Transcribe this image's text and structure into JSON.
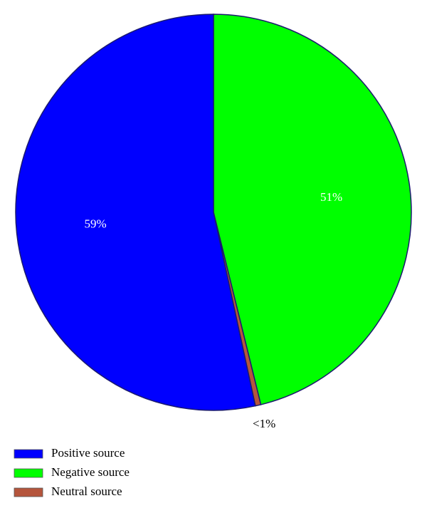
{
  "chart_data": {
    "type": "pie",
    "categories": [
      "Positive source",
      "Negative source",
      "Neutral source"
    ],
    "values": [
      59,
      51,
      0.5
    ],
    "value_labels": [
      "59%",
      "51%",
      "<1%"
    ],
    "colors": [
      "#0000ff",
      "#00ff00",
      "#b5553c"
    ]
  }
}
